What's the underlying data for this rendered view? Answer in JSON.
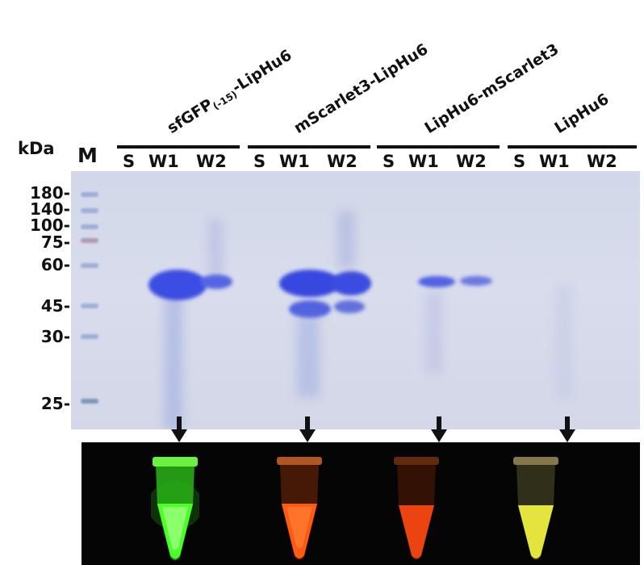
{
  "axis_unit": "kDa",
  "marker_lane": "M",
  "mw_labels": [
    "180-",
    "140-",
    "100-",
    "75-",
    "60-",
    "45-",
    "30-",
    "25-"
  ],
  "groups": [
    {
      "title_main": "sfGFP",
      "title_sub": "(-15)",
      "title_end": "-LipHu6",
      "lanes": [
        "S",
        "W1",
        "W2"
      ]
    },
    {
      "title_main": "mScarlet3-LipHu6",
      "lanes": [
        "S",
        "W1",
        "W2"
      ]
    },
    {
      "title_main": "LipHu6-mScarlet3",
      "lanes": [
        "S",
        "W1",
        "W2"
      ]
    },
    {
      "title_main": "LipHu6",
      "lanes": [
        "S",
        "W1",
        "W2"
      ]
    }
  ],
  "colors": {
    "gel_background": "#d4d8ea",
    "protein_band": "#3a4be0",
    "tube_green": "#3cff20",
    "tube_red": "#ff5a10",
    "tube_orange": "#ff4a10",
    "tube_yellow": "#e6e640"
  }
}
